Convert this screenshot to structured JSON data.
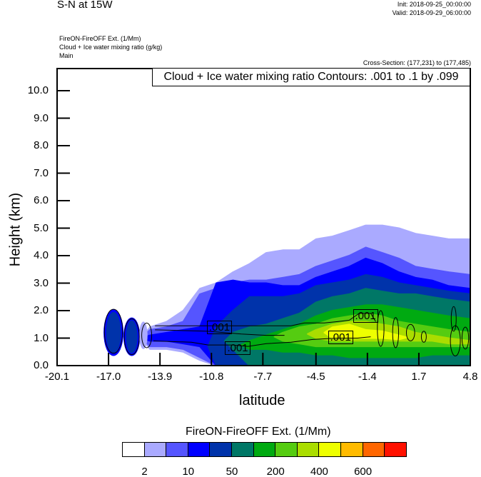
{
  "header": {
    "title": "S-N at 15W",
    "init": "Init: 2018-09-25_00:00:00",
    "valid": "Valid: 2018-09-29_06:00:00",
    "fields": [
      "FireON-FireOFF Ext.   (1/Mm)",
      "Cloud + Ice water mixing ratio   (g/kg)",
      "Main"
    ],
    "cross_section": "Cross-Section: (177,231) to (177,485)"
  },
  "chart_data": {
    "type": "heatmap",
    "title": "S-N at 15W",
    "xlabel": "latitude",
    "ylabel": "Height (km)",
    "xlim": [
      -20.1,
      4.8
    ],
    "ylim": [
      0,
      10.8
    ],
    "xticks": [
      "-20.1",
      "-17.0",
      "-13.9",
      "-10.8",
      "-7.7",
      "-4.5",
      "-1.4",
      "1.7",
      "4.8"
    ],
    "xtick_values": [
      -20.1,
      -17.0,
      -13.9,
      -10.8,
      -7.7,
      -4.5,
      -1.4,
      1.7,
      4.8
    ],
    "yticks": [
      "0.0",
      "1.0",
      "2.0",
      "3.0",
      "4.0",
      "5.0",
      "6.0",
      "7.0",
      "8.0",
      "9.0",
      "10.0"
    ],
    "ytick_values": [
      0,
      1,
      2,
      3,
      4,
      5,
      6,
      7,
      8,
      9,
      10
    ],
    "contour_legend": "Cloud + Ice water mixing ratio Contours: .001 to .1 by .099",
    "colorbar": {
      "title": "FireON-FireOFF Ext.  (1/Mm)",
      "colors": [
        "#ffffff",
        "#aaaaff",
        "#5555ff",
        "#0000ff",
        "#0033aa",
        "#007766",
        "#00aa11",
        "#55cc11",
        "#aadd00",
        "#eeff00",
        "#ffbb00",
        "#ff6600",
        "#ff1100"
      ],
      "labels": [
        "2",
        "10",
        "50",
        "200",
        "400",
        "600"
      ],
      "label_after_box": [
        1,
        3,
        5,
        7,
        9,
        11
      ]
    },
    "field_lat": [
      -14.5,
      -13.5,
      -12.5,
      -11.5,
      -10.5,
      -9.5,
      -8.5,
      -7.5,
      -6.5,
      -5.5,
      -4.5,
      -3.5,
      -2.5,
      -1.5,
      -0.5,
      0.5,
      1.5,
      2.5,
      3.5,
      4.8
    ],
    "field_levels": [
      {
        "color_index": 1,
        "top": [
          1.4,
          1.6,
          2.0,
          2.8,
          3.0,
          3.4,
          3.7,
          4.1,
          4.2,
          4.2,
          4.6,
          4.7,
          4.9,
          5.1,
          5.1,
          5.0,
          4.8,
          4.7,
          4.6,
          4.6
        ],
        "bottom": [
          0.6,
          0.6,
          0.5,
          0.2,
          0,
          0,
          0,
          0,
          0,
          0,
          0,
          0,
          0,
          0,
          0,
          0,
          0,
          0,
          0,
          0
        ]
      },
      {
        "color_index": 2,
        "top": [
          1.3,
          1.4,
          1.6,
          2.6,
          2.8,
          3.0,
          3.1,
          3.1,
          3.2,
          3.3,
          3.6,
          3.8,
          4.0,
          4.3,
          4.1,
          3.9,
          3.6,
          3.5,
          3.4,
          3.3
        ],
        "bottom": [
          0.7,
          0.7,
          0.6,
          0.3,
          0,
          0,
          0,
          0,
          0,
          0,
          0,
          0,
          0,
          0,
          0,
          0,
          0,
          0,
          0,
          0
        ]
      },
      {
        "color_index": 3,
        "top": [
          1.1,
          1.2,
          1.3,
          1.4,
          3.0,
          3.1,
          3.0,
          3.0,
          2.9,
          2.9,
          3.2,
          3.4,
          3.6,
          3.9,
          3.7,
          3.4,
          3.2,
          3.1,
          2.9,
          2.8
        ],
        "bottom": [
          0.9,
          0.9,
          0.8,
          0.7,
          0,
          0,
          0,
          0,
          0,
          0,
          0,
          0,
          0,
          0,
          0,
          0,
          0,
          0,
          0,
          0
        ]
      },
      {
        "color_index": 4,
        "top": [
          0,
          0,
          0,
          0,
          1.4,
          2.0,
          2.5,
          2.5,
          2.5,
          2.6,
          2.9,
          3.0,
          3.1,
          3.3,
          3.2,
          3.0,
          2.9,
          2.8,
          2.7,
          2.6
        ],
        "bottom": [
          0,
          0,
          0,
          0,
          0,
          0,
          0,
          0,
          0,
          0,
          0,
          0,
          0,
          0,
          0,
          0,
          0,
          0,
          0,
          0
        ]
      },
      {
        "color_index": 5,
        "top": [
          0,
          0,
          0,
          0,
          0,
          1.2,
          1.4,
          1.5,
          1.7,
          1.9,
          2.3,
          2.5,
          2.6,
          2.8,
          2.7,
          2.6,
          2.6,
          2.5,
          2.4,
          2.3
        ],
        "bottom": [
          0,
          0,
          0,
          0,
          0,
          0.6,
          0,
          0,
          0,
          0,
          0,
          0,
          0,
          0,
          0,
          0,
          0,
          0,
          0,
          0
        ]
      },
      {
        "color_index": 6,
        "top": [
          0,
          0,
          0,
          0,
          0,
          0,
          0.9,
          1.1,
          1.3,
          1.5,
          1.8,
          2.0,
          2.1,
          2.2,
          2.2,
          2.1,
          2.0,
          1.9,
          1.8,
          1.7
        ],
        "bottom": [
          0,
          0,
          0,
          0,
          0,
          0,
          0.6,
          0.6,
          0.5,
          0.5,
          0.4,
          0.4,
          0.3,
          0.3,
          0.3,
          0.3,
          0.3,
          0.4,
          0.4,
          0.4
        ]
      },
      {
        "color_index": 7,
        "top": [
          0,
          0,
          0,
          0,
          0,
          0,
          0,
          0,
          1.2,
          1.4,
          1.5,
          1.7,
          1.8,
          1.9,
          1.8,
          1.6,
          1.5,
          1.4,
          1.3,
          1.2
        ],
        "bottom": [
          0,
          0,
          0,
          0,
          0,
          0,
          0,
          0,
          0.9,
          0.8,
          0.7,
          0.7,
          0.7,
          0.7,
          0.7,
          0.7,
          0.7,
          0.7,
          0.7,
          0.7
        ]
      },
      {
        "color_index": 8,
        "top": [
          0,
          0,
          0,
          0,
          0,
          0,
          0,
          0,
          0,
          0,
          1.3,
          1.5,
          1.6,
          1.6,
          1.5,
          1.4,
          1.2,
          1.1,
          1.0,
          0.9
        ],
        "bottom": [
          0,
          0,
          0,
          0,
          0,
          0,
          0,
          0,
          0,
          0,
          1.0,
          0.9,
          0.9,
          0.9,
          0.9,
          0.9,
          0.9,
          0.9,
          0.8,
          0.8
        ]
      },
      {
        "color_index": 9,
        "top": [
          0,
          0,
          0,
          0,
          0,
          0,
          0,
          0,
          0,
          0,
          0,
          1.4,
          1.5,
          1.3,
          1.25,
          1.1,
          0,
          0,
          0,
          0
        ],
        "bottom": [
          0,
          0,
          0,
          0,
          0,
          0,
          0,
          0,
          0,
          0,
          0,
          1.0,
          1.0,
          1.0,
          1.0,
          0.95,
          0,
          0,
          0,
          0
        ]
      }
    ],
    "field_blobs": [
      {
        "lat": -16.7,
        "h": 1.2,
        "dlat": 0.6,
        "dh": 0.85,
        "color_index": 3
      },
      {
        "lat": -16.7,
        "h": 1.2,
        "dlat": 0.45,
        "dh": 0.75,
        "color_index": 4
      },
      {
        "lat": -15.6,
        "h": 1.05,
        "dlat": 0.5,
        "dh": 0.7,
        "color_index": 3
      },
      {
        "lat": -15.6,
        "h": 1.05,
        "dlat": 0.35,
        "dh": 0.6,
        "color_index": 4
      },
      {
        "lat": -14.9,
        "h": 1.1,
        "dlat": 0.25,
        "dh": 0.5,
        "color_index": 1
      }
    ],
    "contours": [
      {
        "level": ".001",
        "points": [
          [
            -14.2,
            1.45
          ],
          [
            -10.8,
            1.45
          ],
          [
            -7.7,
            1.45
          ],
          [
            -6,
            1.45
          ],
          [
            -5.2,
            1.55
          ],
          [
            -4,
            1.55
          ],
          [
            -3.2,
            1.6
          ],
          [
            -2.5,
            1.65
          ],
          [
            -1.9,
            1.9
          ],
          [
            -1.2,
            1.9
          ],
          [
            -0.9,
            1.6
          ]
        ]
      },
      {
        "level": ".001",
        "points": [
          [
            -14.3,
            0.9
          ],
          [
            -12,
            0.85
          ],
          [
            -11,
            0.75
          ],
          [
            -9.5,
            0.75
          ],
          [
            -8.6,
            0.7
          ],
          [
            -7.5,
            0.8
          ],
          [
            -6,
            0.85
          ],
          [
            -4.7,
            0.95
          ],
          [
            -3.2,
            1.0
          ],
          [
            -2,
            1.0
          ],
          [
            -1.2,
            1.05
          ]
        ]
      },
      {
        "level": ".001",
        "points": [
          [
            -14.2,
            1.3
          ],
          [
            -11,
            1.25
          ],
          [
            -9,
            1.15
          ],
          [
            -7.5,
            1.1
          ],
          [
            -6.4,
            1.1
          ]
        ]
      },
      {
        "level": ".001",
        "ellipse": [
          -16.7,
          1.25,
          0.55,
          0.8
        ]
      },
      {
        "level": ".001",
        "ellipse": [
          -15.6,
          1.05,
          0.45,
          0.65
        ]
      },
      {
        "level": ".001",
        "ellipse": [
          -14.7,
          1.1,
          0.3,
          0.45
        ]
      },
      {
        "level": ".001",
        "ellipse": [
          -0.6,
          1.35,
          0.2,
          0.65
        ]
      },
      {
        "level": ".001",
        "ellipse": [
          0.3,
          1.2,
          0.18,
          0.55
        ]
      },
      {
        "level": ".001",
        "ellipse": [
          1.2,
          1.2,
          0.25,
          0.3
        ]
      },
      {
        "level": ".001",
        "ellipse": [
          2.0,
          1.05,
          0.15,
          0.2
        ]
      },
      {
        "level": ".001",
        "ellipse": [
          3.8,
          1.7,
          0.15,
          0.45
        ]
      },
      {
        "level": ".001",
        "ellipse": [
          3.9,
          0.9,
          0.3,
          0.55
        ]
      },
      {
        "level": ".001",
        "ellipse": [
          4.5,
          1.0,
          0.2,
          0.4
        ]
      }
    ],
    "contour_labels": [
      {
        "text": ".001",
        "lat": -10.3,
        "h": 1.38
      },
      {
        "text": ".001",
        "lat": -9.2,
        "h": 0.62
      },
      {
        "text": ".001",
        "lat": -3.0,
        "h": 1.02
      },
      {
        "text": ".001",
        "lat": -1.5,
        "h": 1.78
      }
    ]
  }
}
